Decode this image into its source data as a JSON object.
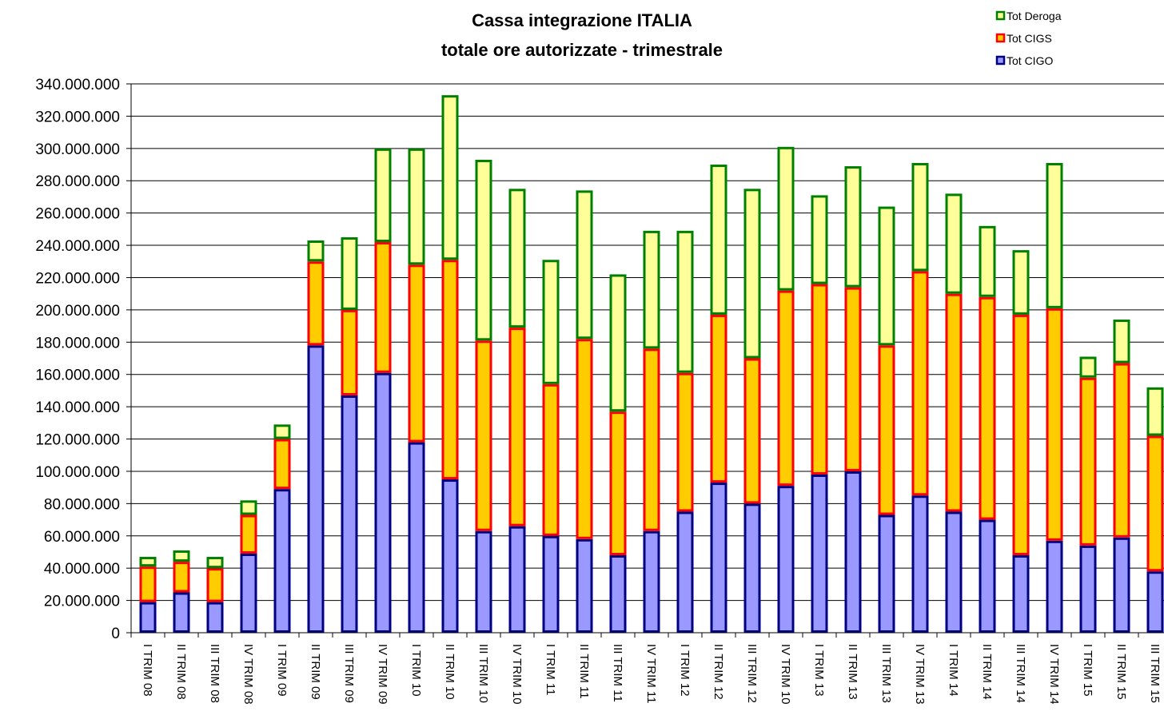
{
  "chart_data": {
    "type": "stacked_bar",
    "title": "Cassa integrazione ITALIA",
    "subtitle": "totale ore autorizzate - trimestrale",
    "categories": [
      "I TRIM 08",
      "II TRIM 08",
      "III TRIM 08",
      "IV TRIM 08",
      "I TRIM 09",
      "II TRIM 09",
      "III TRIM 09",
      "IV TRIM 09",
      "I TRIM 10",
      "II TRIM 10",
      "III TRIM 10",
      "IV TRIM 10",
      "I TRIM 11",
      "II TRIM 11",
      "III TRIM 11",
      "IV TRIM 11",
      "I TRIM 12",
      "II TRIM 12",
      "III TRIM 12",
      "IV TRIM 10",
      "I TRIM 13",
      "II TRIM 13",
      "III TRIM 13",
      "IV TRIM 13",
      "I TRIM 14",
      "II TRIM 14",
      "III TRIM 14",
      "IV TRIM 14",
      "I TRIM 15",
      "II TRIM 15",
      "III TRIM 15"
    ],
    "series": [
      {
        "name": "Tot CIGO",
        "color": "#9999ff",
        "edge": "#000080",
        "values": [
          19000000,
          25000000,
          19000000,
          49000000,
          89000000,
          178000000,
          147000000,
          161000000,
          118000000,
          95000000,
          63000000,
          66000000,
          60000000,
          58000000,
          48000000,
          63000000,
          75000000,
          93000000,
          80000000,
          91000000,
          98000000,
          100000000,
          73000000,
          85000000,
          75000000,
          70000000,
          48000000,
          57000000,
          54000000,
          59000000,
          38000000
        ]
      },
      {
        "name": "Tot CIGS",
        "color": "#ffcc00",
        "edge": "#ff0000",
        "values": [
          22000000,
          19000000,
          21000000,
          24000000,
          31000000,
          52000000,
          53000000,
          81000000,
          110000000,
          136000000,
          118000000,
          123000000,
          94000000,
          124000000,
          89000000,
          113000000,
          86000000,
          104000000,
          90000000,
          121000000,
          118000000,
          114000000,
          105000000,
          139000000,
          135000000,
          138000000,
          149000000,
          144000000,
          104000000,
          108000000,
          84000000
        ]
      },
      {
        "name": "Tot Deroga",
        "color": "#ffff99",
        "edge": "#008000",
        "values": [
          6000000,
          7000000,
          7000000,
          9000000,
          9000000,
          13000000,
          45000000,
          58000000,
          72000000,
          102000000,
          112000000,
          86000000,
          77000000,
          92000000,
          85000000,
          73000000,
          88000000,
          93000000,
          105000000,
          89000000,
          55000000,
          75000000,
          86000000,
          67000000,
          62000000,
          44000000,
          40000000,
          90000000,
          13000000,
          27000000,
          30000000
        ]
      }
    ],
    "ylim": [
      0,
      340000000
    ],
    "yticks": [
      0,
      {
        "value": 20000000,
        "label": "20.000.000"
      },
      {
        "value": 40000000,
        "label": "40.000.000"
      },
      {
        "value": 60000000,
        "label": "60.000.000"
      },
      {
        "value": 80000000,
        "label": "80.000.000"
      },
      {
        "value": 100000000,
        "label": "100.000.000"
      },
      {
        "value": 120000000,
        "label": "120.000.000"
      },
      {
        "value": 140000000,
        "label": "140.000.000"
      },
      {
        "value": 160000000,
        "label": "160.000.000"
      },
      {
        "value": 180000000,
        "label": "180.000.000"
      },
      {
        "value": 200000000,
        "label": "200.000.000"
      },
      {
        "value": 220000000,
        "label": "220.000.000"
      },
      {
        "value": 240000000,
        "label": "240.000.000"
      },
      {
        "value": 260000000,
        "label": "260.000.000"
      },
      {
        "value": 280000000,
        "label": "280.000.000"
      },
      {
        "value": 300000000,
        "label": "300.000.000"
      },
      {
        "value": 320000000,
        "label": "320.000.000"
      },
      {
        "value": 340000000,
        "label": "340.000.000"
      }
    ],
    "grid": true,
    "legend": "top-right"
  }
}
